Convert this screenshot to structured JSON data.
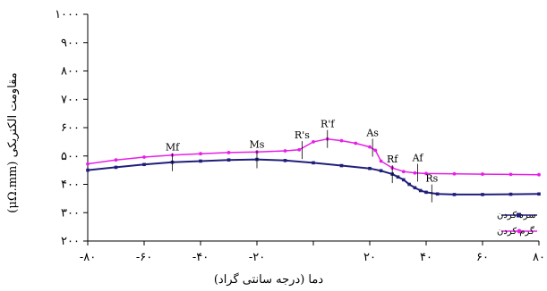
{
  "chart_data": {
    "type": "line",
    "title": "",
    "xlabel": "دما (درجه سانتی گراد)",
    "ylabel": "مقاومت الکتریکی (μΩ.mm)",
    "xlim": [
      -80,
      80
    ],
    "ylim": [
      200,
      1000
    ],
    "x_ticks": [
      -80,
      -60,
      -40,
      -20,
      0,
      20,
      40,
      60,
      80
    ],
    "x_tick_labels": [
      "-۸۰",
      "-۶۰",
      "-۴۰",
      "-۲۰",
      "",
      "۲۰",
      "۴۰",
      "۶۰",
      "۸۰"
    ],
    "y_ticks": [
      200,
      300,
      400,
      500,
      600,
      700,
      800,
      900,
      1000
    ],
    "y_tick_labels": [
      "۲۰۰",
      "۳۰۰",
      "۴۰۰",
      "۵۰۰",
      "۶۰۰",
      "۷۰۰",
      "۸۰۰",
      "۹۰۰",
      "۱۰۰۰"
    ],
    "grid": false,
    "legend_position": "bottom-right",
    "series": [
      {
        "name": "سرد کردن",
        "color": "#1f1f7a",
        "marker": "square",
        "x": [
          -80,
          -70,
          -60,
          -50,
          -40,
          -30,
          -20,
          -10,
          0,
          10,
          20,
          24,
          28,
          30,
          32,
          34,
          36,
          38,
          40,
          44,
          50,
          60,
          70,
          80
        ],
        "y": [
          450,
          460,
          470,
          478,
          482,
          486,
          488,
          484,
          476,
          466,
          456,
          448,
          436,
          426,
          416,
          400,
          388,
          378,
          372,
          366,
          364,
          364,
          365,
          366
        ]
      },
      {
        "name": "گرم کردن",
        "color": "#e81ee8",
        "marker": "circle",
        "x": [
          -80,
          -70,
          -60,
          -50,
          -40,
          -30,
          -20,
          -10,
          -5,
          0,
          5,
          10,
          15,
          20,
          22,
          24,
          28,
          32,
          36,
          40,
          50,
          60,
          70,
          80
        ],
        "y": [
          472,
          486,
          496,
          503,
          508,
          512,
          514,
          518,
          522,
          550,
          560,
          554,
          545,
          532,
          520,
          482,
          458,
          445,
          440,
          438,
          437,
          436,
          435,
          434
        ]
      }
    ],
    "annotations": [
      {
        "text": "Mf",
        "x": -50,
        "y": 478
      },
      {
        "text": "Ms",
        "x": -20,
        "y": 488
      },
      {
        "text": "R's",
        "x": -4,
        "y": 521
      },
      {
        "text": "R'f",
        "x": 5,
        "y": 560
      },
      {
        "text": "As",
        "x": 21,
        "y": 529
      },
      {
        "text": "Rf",
        "x": 28,
        "y": 436
      },
      {
        "text": "Af",
        "x": 37,
        "y": 441
      },
      {
        "text": "Rs",
        "x": 42,
        "y": 368
      }
    ]
  }
}
